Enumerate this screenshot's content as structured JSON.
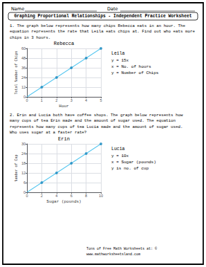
{
  "chart_data": [
    {
      "type": "line",
      "title": "Rebecca",
      "xlabel": "Hour",
      "ylabel": "Total Number of Chips",
      "xlim": [
        0,
        5
      ],
      "ylim": [
        0,
        60
      ],
      "xticks": [
        0,
        1,
        2,
        3,
        4,
        5
      ],
      "yticks": [
        0,
        12,
        24,
        36,
        48,
        60
      ],
      "grid": true,
      "series": [
        {
          "type": "line",
          "color": "#5bc8f0",
          "marker": "none",
          "x": [
            0,
            1,
            2,
            3,
            4,
            5
          ],
          "values": [
            0,
            12,
            24,
            36,
            48,
            60
          ]
        },
        {
          "type": "scatter",
          "color": "#1a8abf",
          "marker": "circle",
          "x": [
            1,
            2,
            3,
            4,
            5
          ],
          "values": [
            12,
            24,
            36,
            48,
            60
          ]
        }
      ],
      "annotations": [
        "Name",
        "Date",
        "Graphing Proportional Relationships - Independent Practice Worksheet",
        "1. The graph below represents how many chips Rebecca eats in an hour. The\nequation represents the rate that Leila eats chips at. Find out who eats more\nchips in 3 hours.",
        "Leila",
        "y = 15x",
        "x = No. of hours",
        "y = Number of Chips"
      ]
    },
    {
      "type": "line",
      "title": "Erin",
      "xlabel": "Sugar (pounds)",
      "ylabel": "Number of Cup",
      "xlim": [
        0,
        10
      ],
      "ylim": [
        0,
        30
      ],
      "xticks": [
        0,
        2,
        4,
        6,
        8,
        10
      ],
      "yticks": [
        0,
        6,
        12,
        18,
        24,
        30
      ],
      "grid": true,
      "series": [
        {
          "type": "line",
          "color": "#5bc8f0",
          "marker": "none",
          "x": [
            0,
            2,
            4,
            6,
            8,
            10
          ],
          "values": [
            0,
            6,
            12,
            18,
            24,
            30
          ]
        },
        {
          "type": "scatter",
          "color": "#1a8abf",
          "marker": "circle",
          "x": [
            2,
            4,
            6,
            8,
            10
          ],
          "values": [
            6,
            12,
            18,
            24,
            30
          ]
        }
      ],
      "annotations": [
        "2. Erin and Lucia both have coffee shops. The graph below represents how\nmany cups of tea Erin made and the amount of sugar used. The equation\nrepresents how many cups of tea Lucia made and the amount of sugar used.\nWho uses sugar at a faster rate?",
        "Lucia",
        "y = 10x",
        "x = Sugar (pounds)",
        "y is no. of cup",
        "Tons of Free Math Worksheets at: © ",
        "www.mathworksheetsland.com"
      ]
    }
  ]
}
